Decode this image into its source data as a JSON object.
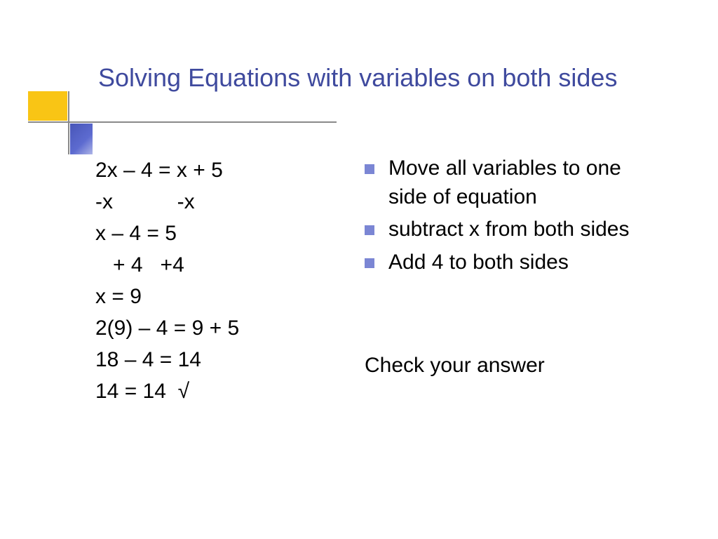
{
  "slide": {
    "title": "Solving Equations with variables on both sides",
    "title_color": "#3f4a9e",
    "title_fontsize": 36,
    "decoration": {
      "yellow_color": "#f9c515",
      "blue_gradient_start": "#4856b8",
      "blue_gradient_end": "#aeb5e7",
      "line_color": "#8a8a8a"
    },
    "body_fontsize": 30,
    "body_color": "#000000",
    "bullet_color": "#7b86d4",
    "background_color": "#ffffff"
  },
  "left": {
    "lines": [
      "2x – 4 = x + 5",
      "-x           -x",
      "x – 4 = 5",
      "   + 4   +4",
      "x = 9",
      "2(9) – 4 = 9 + 5",
      "18 – 4 = 14",
      "14 = 14  √"
    ]
  },
  "right": {
    "bullets": [
      "Move all variables to one side of equation",
      " subtract x from both sides",
      "Add 4 to both sides"
    ],
    "footer": "Check your answer"
  }
}
